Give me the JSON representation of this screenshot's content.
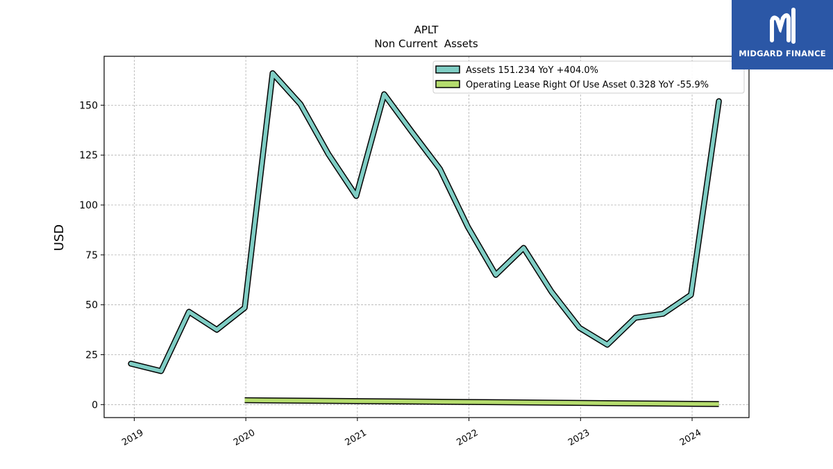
{
  "brand": {
    "name": "MIDGARD FINANCE",
    "bg_color": "#2b57a6"
  },
  "chart_data": {
    "type": "line",
    "title": "APLT",
    "subtitle": "Non Current  Assets",
    "xlabel": "",
    "ylabel": "USD",
    "xlim": [
      2018.73,
      2024.51
    ],
    "ylim": [
      -6.5,
      174.5
    ],
    "x_ticks": [
      {
        "value": 2019,
        "label": "2019"
      },
      {
        "value": 2020,
        "label": "2020"
      },
      {
        "value": 2021,
        "label": "2021"
      },
      {
        "value": 2022,
        "label": "2022"
      },
      {
        "value": 2023,
        "label": "2023"
      },
      {
        "value": 2024,
        "label": "2024"
      }
    ],
    "y_ticks": [
      {
        "value": 0,
        "label": "0"
      },
      {
        "value": 25,
        "label": "25"
      },
      {
        "value": 50,
        "label": "50"
      },
      {
        "value": 75,
        "label": "75"
      },
      {
        "value": 100,
        "label": "100"
      },
      {
        "value": 125,
        "label": "125"
      },
      {
        "value": 150,
        "label": "150"
      }
    ],
    "grid": true,
    "legend_position": "top-right",
    "series": [
      {
        "name": "Assets",
        "legend_label": "Assets  151.234 YoY +404.0%",
        "color": "#7fcdc4",
        "x": [
          2018.97,
          2019.24,
          2019.49,
          2019.74,
          2019.99,
          2020.24,
          2020.49,
          2020.74,
          2020.99,
          2021.24,
          2021.49,
          2021.74,
          2021.99,
          2022.24,
          2022.49,
          2022.74,
          2022.99,
          2023.24,
          2023.49,
          2023.74,
          2023.99,
          2024.24
        ],
        "y": [
          20.5,
          16.8,
          46.5,
          37.5,
          48.5,
          166.0,
          150.5,
          125.5,
          104.5,
          155.5,
          136.5,
          118.0,
          89.0,
          65.0,
          78.5,
          56.5,
          38.5,
          30.0,
          43.5,
          45.5,
          55.0,
          152.0
        ]
      },
      {
        "name": "Operating Lease Right Of Use Asset",
        "legend_label": "Operating Lease Right Of Use Asset  0.328 YoY -55.9%",
        "color": "#b5dc6e",
        "x": [
          2019.99,
          2024.24
        ],
        "y": [
          2.2,
          0.3
        ]
      }
    ]
  }
}
